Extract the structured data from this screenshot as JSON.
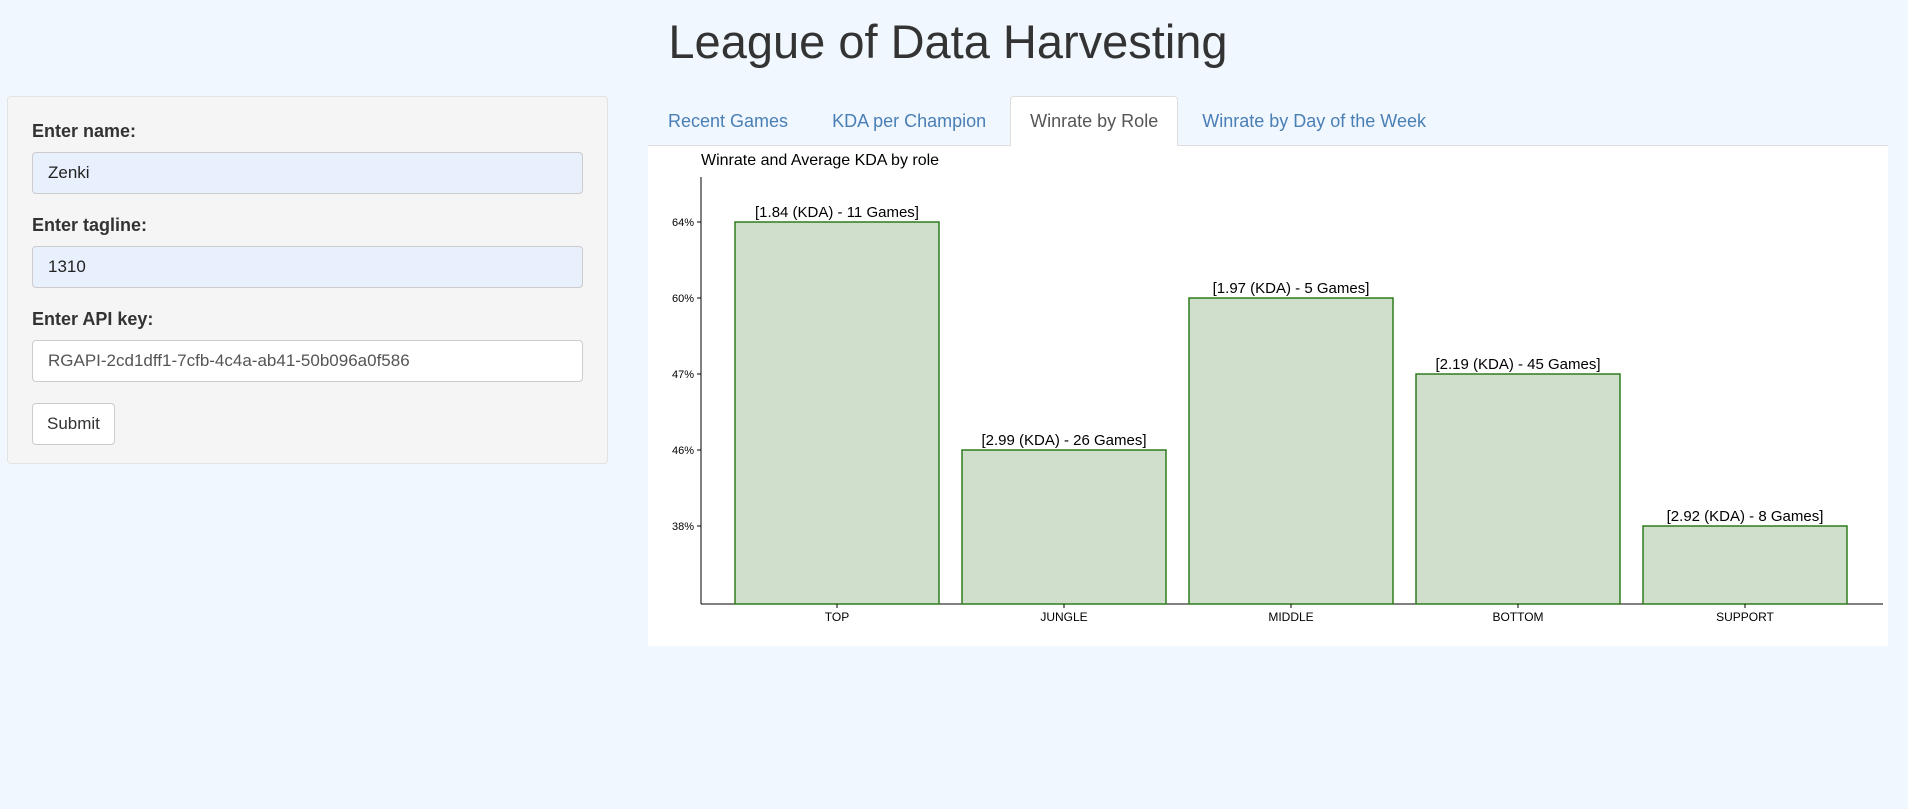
{
  "app": {
    "title": "League of Data Harvesting"
  },
  "form": {
    "name_label": "Enter name:",
    "name_value": "Zenki",
    "tagline_label": "Enter tagline:",
    "tagline_value": "1310",
    "api_label": "Enter API key:",
    "api_value": "RGAPI-2cd1dff1-7cfb-4c4a-ab41-50b096a0f586",
    "submit_label": "Submit"
  },
  "tabs": [
    {
      "label": "Recent Games",
      "active": false
    },
    {
      "label": "KDA per Champion",
      "active": false
    },
    {
      "label": "Winrate by Role",
      "active": true
    },
    {
      "label": "Winrate by Day of the Week",
      "active": false
    }
  ],
  "colors": {
    "bar_fill": "#d0dfcb",
    "bar_stroke": "#2e7d1e",
    "tab_link": "#4a7fb5",
    "page_bg": "#f0f7ff"
  },
  "chart_data": {
    "type": "bar",
    "title": "Winrate and Average KDA by role",
    "xlabel": "",
    "ylabel": "",
    "categories": [
      "TOP",
      "JUNGLE",
      "MIDDLE",
      "BOTTOM",
      "SUPPORT"
    ],
    "values": [
      "64%",
      "46%",
      "60%",
      "47%",
      "38%"
    ],
    "y_ticks": [
      "38%",
      "46%",
      "47%",
      "60%",
      "64%"
    ],
    "data_labels": [
      "[1.84 (KDA) - 11 Games]",
      "[2.99 (KDA) - 26 Games]",
      "[1.97 (KDA) - 5 Games]",
      "[2.19 (KDA) - 45 Games]",
      "[2.92 (KDA) - 8 Games]"
    ],
    "grid": false,
    "legend": "none"
  }
}
